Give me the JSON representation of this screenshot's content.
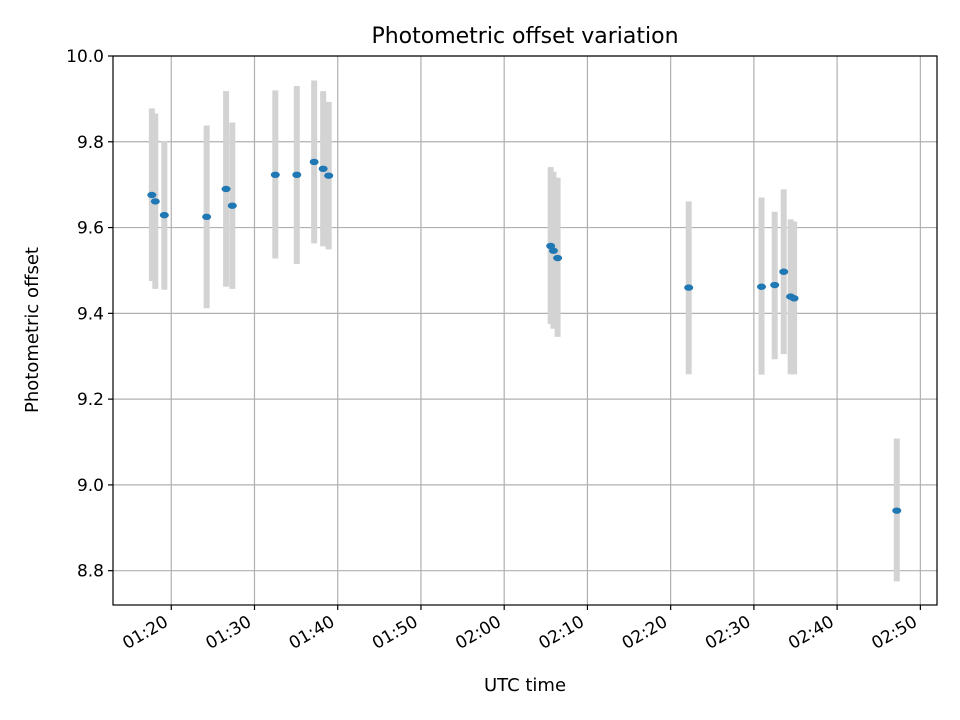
{
  "chart_data": {
    "type": "scatter",
    "title": "Photometric offset variation",
    "xlabel": "UTC time",
    "ylabel": "Photometric offset",
    "x_tick_labels": [
      "01:20",
      "01:30",
      "01:40",
      "01:50",
      "02:00",
      "02:10",
      "02:20",
      "02:30",
      "02:40",
      "02:50"
    ],
    "y_tick_labels": [
      "8.8",
      "9.0",
      "9.2",
      "9.4",
      "9.6",
      "9.8",
      "10.0"
    ],
    "x_ticks": [
      "01:20",
      "01:30",
      "01:40",
      "01:50",
      "02:00",
      "02:10",
      "02:20",
      "02:30",
      "02:40",
      "02:50"
    ],
    "y_ticks": [
      8.8,
      9.0,
      9.2,
      9.4,
      9.6,
      9.8,
      10.0
    ],
    "xlim": [
      "01:13:00",
      "02:52:00"
    ],
    "ylim": [
      8.72,
      10.0
    ],
    "grid": true,
    "colors": {
      "point": "#1f77b4",
      "errorbar": "#d3d3d3",
      "grid": "#b0b0b0"
    },
    "points": [
      {
        "time": "01:17:40",
        "y": 9.676,
        "low": 9.475,
        "high": 9.878
      },
      {
        "time": "01:18:05",
        "y": 9.661,
        "low": 9.457,
        "high": 9.866
      },
      {
        "time": "01:19:10",
        "y": 9.629,
        "low": 9.455,
        "high": 9.802
      },
      {
        "time": "01:24:15",
        "y": 9.625,
        "low": 9.412,
        "high": 9.838
      },
      {
        "time": "01:26:35",
        "y": 9.69,
        "low": 9.462,
        "high": 9.918
      },
      {
        "time": "01:27:20",
        "y": 9.651,
        "low": 9.457,
        "high": 9.845
      },
      {
        "time": "01:32:30",
        "y": 9.723,
        "low": 9.528,
        "high": 9.92
      },
      {
        "time": "01:35:05",
        "y": 9.723,
        "low": 9.515,
        "high": 9.93
      },
      {
        "time": "01:37:10",
        "y": 9.753,
        "low": 9.563,
        "high": 9.943
      },
      {
        "time": "01:38:15",
        "y": 9.737,
        "low": 9.556,
        "high": 9.918
      },
      {
        "time": "01:38:55",
        "y": 9.721,
        "low": 9.549,
        "high": 9.893
      },
      {
        "time": "02:05:35",
        "y": 9.557,
        "low": 9.375,
        "high": 9.741
      },
      {
        "time": "02:05:55",
        "y": 9.546,
        "low": 9.364,
        "high": 9.73
      },
      {
        "time": "02:06:25",
        "y": 9.529,
        "low": 9.345,
        "high": 9.716
      },
      {
        "time": "02:22:10",
        "y": 9.46,
        "low": 9.258,
        "high": 9.661
      },
      {
        "time": "02:30:55",
        "y": 9.462,
        "low": 9.257,
        "high": 9.67
      },
      {
        "time": "02:32:30",
        "y": 9.466,
        "low": 9.293,
        "high": 9.637
      },
      {
        "time": "02:33:35",
        "y": 9.497,
        "low": 9.305,
        "high": 9.689
      },
      {
        "time": "02:34:25",
        "y": 9.439,
        "low": 9.258,
        "high": 9.619
      },
      {
        "time": "02:34:50",
        "y": 9.435,
        "low": 9.258,
        "high": 9.614
      },
      {
        "time": "02:47:10",
        "y": 8.94,
        "low": 8.775,
        "high": 9.108
      }
    ]
  }
}
